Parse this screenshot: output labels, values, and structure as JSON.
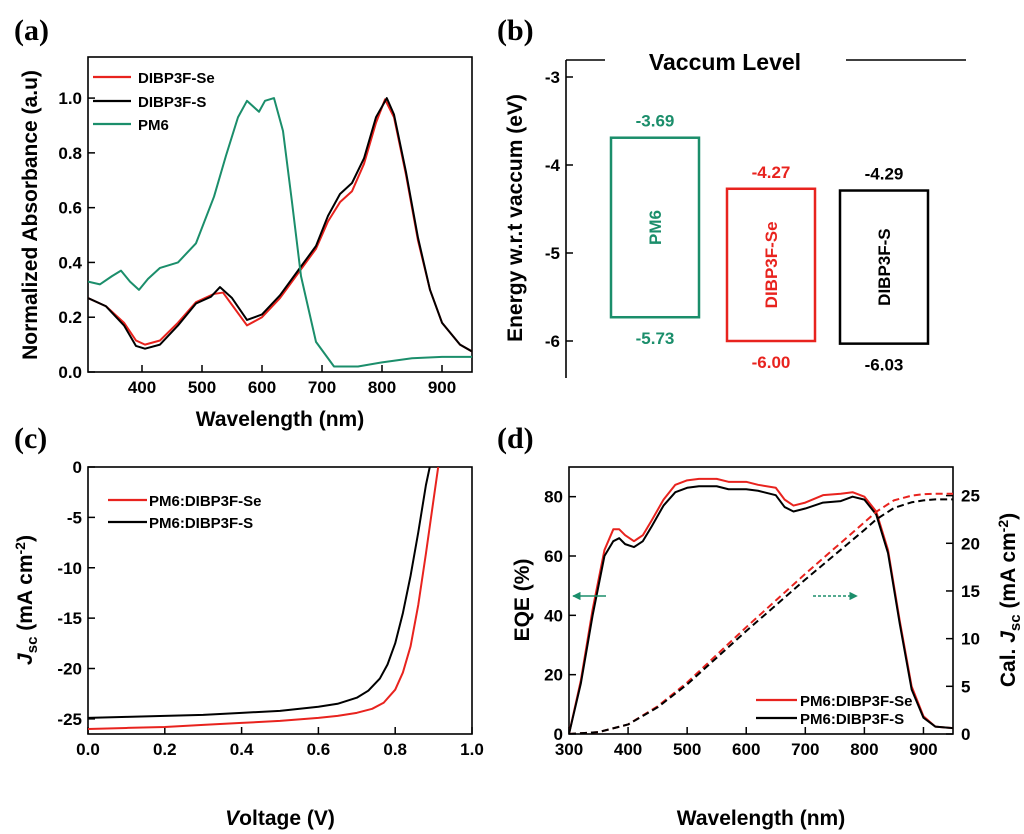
{
  "chart_data": [
    {
      "panel": "(a)",
      "type": "line",
      "xlabel": "Wavelength (nm)",
      "ylabel": "Normalized Absorbance (a.u)",
      "xlim": [
        310,
        950
      ],
      "ylim": [
        0.0,
        1.15
      ],
      "xticks": [
        "400",
        "500",
        "600",
        "700",
        "800",
        "900"
      ],
      "yticks": [
        "0.0",
        "0.2",
        "0.4",
        "0.6",
        "0.8",
        "1.0"
      ],
      "legend_position": "top-left",
      "series": [
        {
          "name": "DIBP3F-Se",
          "color": "#e8231e",
          "x": [
            310,
            340,
            370,
            390,
            405,
            430,
            460,
            490,
            520,
            535,
            550,
            575,
            600,
            630,
            660,
            690,
            710,
            730,
            750,
            770,
            790,
            805,
            820,
            840,
            860,
            880,
            900,
            930,
            950
          ],
          "y": [
            0.27,
            0.24,
            0.18,
            0.115,
            0.1,
            0.115,
            0.18,
            0.255,
            0.285,
            0.29,
            0.245,
            0.17,
            0.2,
            0.27,
            0.36,
            0.45,
            0.55,
            0.62,
            0.66,
            0.76,
            0.91,
            0.995,
            0.93,
            0.72,
            0.48,
            0.3,
            0.18,
            0.1,
            0.075
          ]
        },
        {
          "name": "DIBP3F-S",
          "color": "#000000",
          "x": [
            310,
            340,
            370,
            390,
            405,
            430,
            460,
            490,
            515,
            530,
            550,
            575,
            600,
            630,
            660,
            690,
            710,
            730,
            750,
            770,
            790,
            808,
            820,
            840,
            860,
            880,
            900,
            930,
            950
          ],
          "y": [
            0.27,
            0.24,
            0.17,
            0.095,
            0.085,
            0.1,
            0.17,
            0.25,
            0.275,
            0.31,
            0.27,
            0.19,
            0.21,
            0.28,
            0.37,
            0.46,
            0.57,
            0.65,
            0.69,
            0.78,
            0.93,
            1.0,
            0.94,
            0.73,
            0.49,
            0.3,
            0.18,
            0.1,
            0.075
          ]
        },
        {
          "name": "PM6",
          "color": "#1b8e6b",
          "x": [
            310,
            330,
            350,
            365,
            380,
            395,
            410,
            430,
            460,
            490,
            520,
            540,
            560,
            575,
            595,
            605,
            620,
            635,
            650,
            665,
            690,
            720,
            760,
            800,
            850,
            900,
            950
          ],
          "y": [
            0.33,
            0.32,
            0.35,
            0.37,
            0.33,
            0.3,
            0.34,
            0.38,
            0.4,
            0.47,
            0.64,
            0.79,
            0.93,
            0.99,
            0.95,
            0.99,
            1.0,
            0.88,
            0.62,
            0.35,
            0.11,
            0.02,
            0.02,
            0.035,
            0.05,
            0.055,
            0.055
          ]
        }
      ]
    },
    {
      "panel": "(b)",
      "type": "energy-level diagram",
      "title": "Vaccum  Level",
      "ylabel": "Energy w.r.t vaccum (eV)",
      "ylim": [
        -6.4,
        -2.85
      ],
      "yticks": [
        "-3",
        "-4",
        "-5",
        "-6"
      ],
      "levels": [
        {
          "name": "PM6",
          "color": "#1b8e6b",
          "lumo": -3.69,
          "homo": -5.73,
          "lumo_label": "-3.69",
          "homo_label": "-5.73"
        },
        {
          "name": "DIBP3F-Se",
          "color": "#e8231e",
          "lumo": -4.27,
          "homo": -6.0,
          "lumo_label": "-4.27",
          "homo_label": "-6.00"
        },
        {
          "name": "DIBP3F-S",
          "color": "#000000",
          "lumo": -4.29,
          "homo": -6.03,
          "lumo_label": "-4.29",
          "homo_label": "-6.03"
        }
      ]
    },
    {
      "panel": "(c)",
      "type": "line",
      "xlabel": "Voltage (V)",
      "ylabel": "Jsc (mA cm-2)",
      "xlim": [
        0.0,
        1.0
      ],
      "ylim": [
        -26.5,
        0
      ],
      "xticks": [
        "0.0",
        "0.2",
        "0.4",
        "0.6",
        "0.8",
        "1.0"
      ],
      "yticks": [
        "0",
        "-5",
        "-10",
        "-15",
        "-20",
        "-25"
      ],
      "legend_position": "top-left",
      "series": [
        {
          "name": "PM6:DIBP3F-Se",
          "color": "#e8231e",
          "x": [
            0.0,
            0.1,
            0.2,
            0.3,
            0.4,
            0.5,
            0.6,
            0.65,
            0.7,
            0.74,
            0.77,
            0.8,
            0.82,
            0.84,
            0.86,
            0.88,
            0.9,
            0.912
          ],
          "y": [
            -26.0,
            -25.9,
            -25.8,
            -25.6,
            -25.4,
            -25.2,
            -24.9,
            -24.7,
            -24.4,
            -24.0,
            -23.4,
            -22.1,
            -20.4,
            -17.8,
            -13.7,
            -8.6,
            -3.2,
            0
          ]
        },
        {
          "name": "PM6:DIBP3F-S",
          "color": "#000000",
          "x": [
            0.0,
            0.1,
            0.2,
            0.3,
            0.4,
            0.5,
            0.6,
            0.65,
            0.7,
            0.73,
            0.76,
            0.78,
            0.8,
            0.82,
            0.84,
            0.86,
            0.88,
            0.89
          ],
          "y": [
            -24.9,
            -24.8,
            -24.7,
            -24.6,
            -24.4,
            -24.2,
            -23.8,
            -23.5,
            -22.9,
            -22.2,
            -21.0,
            -19.6,
            -17.5,
            -14.5,
            -10.8,
            -6.5,
            -1.8,
            0
          ]
        }
      ]
    },
    {
      "panel": "(d)",
      "type": "line",
      "xlabel": "Wavelength (nm)",
      "ylabel": "EQE (%)",
      "ylabel_right": "Cal. Jsc (mA cm-2)",
      "xlim": [
        300,
        950
      ],
      "ylim": [
        0,
        90
      ],
      "ylim_right": [
        0,
        28
      ],
      "xticks": [
        "300",
        "400",
        "500",
        "600",
        "700",
        "800",
        "900"
      ],
      "yticks": [
        "0",
        "20",
        "40",
        "60",
        "80"
      ],
      "yticks_right": [
        "0",
        "5",
        "10",
        "15",
        "20",
        "25"
      ],
      "legend_position": "bottom-right",
      "series": [
        {
          "name": "PM6:DIBP3F-Se",
          "color": "#e8231e",
          "axis": "left",
          "x": [
            300,
            320,
            340,
            360,
            375,
            385,
            395,
            410,
            425,
            440,
            460,
            480,
            500,
            520,
            550,
            570,
            600,
            620,
            650,
            665,
            680,
            700,
            730,
            760,
            780,
            800,
            820,
            840,
            860,
            880,
            900,
            920,
            950
          ],
          "y": [
            0,
            18,
            42,
            62,
            69,
            69,
            67,
            65,
            67,
            72,
            79,
            84,
            85.5,
            86,
            86,
            85,
            85,
            84,
            83,
            79,
            77,
            78,
            80.5,
            81,
            81.5,
            80,
            75,
            62,
            38,
            16,
            6,
            2.5,
            2
          ]
        },
        {
          "name": "PM6:DIBP3F-S",
          "color": "#000000",
          "axis": "left",
          "x": [
            300,
            320,
            340,
            360,
            375,
            385,
            395,
            410,
            425,
            440,
            460,
            480,
            500,
            520,
            550,
            570,
            600,
            620,
            650,
            665,
            680,
            700,
            730,
            760,
            780,
            800,
            820,
            840,
            860,
            880,
            900,
            920,
            950
          ],
          "y": [
            0,
            17,
            40,
            60,
            65,
            66,
            64,
            63,
            65,
            70,
            77,
            81.5,
            83,
            83.5,
            83.5,
            82.5,
            82.5,
            82,
            80.5,
            76.5,
            75,
            76,
            78,
            78.5,
            80,
            79,
            74,
            61,
            37,
            15,
            5.5,
            2.5,
            2
          ]
        },
        {
          "name": "Cal. Jsc (PM6:DIBP3F-Se)",
          "color": "#e8231e",
          "axis": "right",
          "dashed": true,
          "x": [
            300,
            350,
            400,
            450,
            500,
            550,
            600,
            650,
            700,
            750,
            800,
            820,
            850,
            880,
            900,
            920,
            950
          ],
          "y": [
            0,
            0.2,
            1.0,
            2.9,
            5.4,
            8.3,
            11.2,
            14.0,
            16.8,
            19.5,
            22.2,
            23.3,
            24.5,
            25.0,
            25.15,
            25.2,
            25.2
          ]
        },
        {
          "name": "Cal. Jsc (PM6:DIBP3F-S)",
          "color": "#000000",
          "axis": "right",
          "dashed": true,
          "x": [
            300,
            350,
            400,
            450,
            500,
            550,
            600,
            650,
            700,
            750,
            800,
            820,
            850,
            880,
            900,
            920,
            950
          ],
          "y": [
            0,
            0.2,
            1.0,
            2.8,
            5.2,
            8.0,
            10.8,
            13.5,
            16.2,
            18.8,
            21.4,
            22.5,
            23.7,
            24.3,
            24.5,
            24.6,
            24.6
          ]
        }
      ]
    }
  ]
}
